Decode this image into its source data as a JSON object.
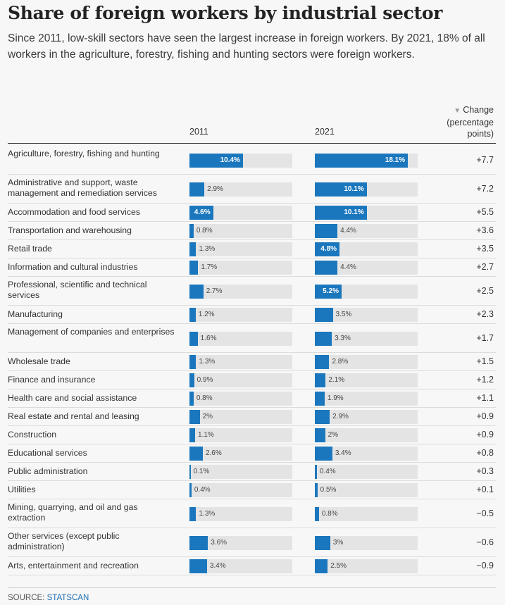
{
  "title": "Share of foreign workers by industrial sector",
  "subtitle": "Since 2011, low-skill sectors have seen the largest increase in foreign workers. By 2021, 18% of all workers in the agriculture, forestry, fishing and hunting sectors were foreign workers.",
  "columns": {
    "year_a": "2011",
    "year_b": "2021",
    "change_line1": "Change",
    "change_line2": "(percentage",
    "change_line3": "points)"
  },
  "source": {
    "label": "SOURCE:",
    "name": "STATSCAN"
  },
  "colors": {
    "bar": "#1b77bd",
    "track": "#e4e4e4"
  },
  "chart_data": {
    "type": "bar",
    "title": "Share of foreign workers by industrial sector",
    "categories": [
      "Agriculture, forestry, fishing and hunting",
      "Administrative and support, waste management and remediation services",
      "Accommodation and food services",
      "Transportation and warehousing",
      "Retail trade",
      "Information and cultural industries",
      "Professional, scientific and technical services",
      "Manufacturing",
      "Management of companies and enterprises",
      "Wholesale trade",
      "Finance and insurance",
      "Health care and social assistance",
      "Real estate and rental and leasing",
      "Construction",
      "Educational services",
      "Public administration",
      "Utilities",
      "Mining, quarrying, and oil and gas extraction",
      "Other services (except public administration)",
      "Arts, entertainment and recreation"
    ],
    "series": [
      {
        "name": "2011",
        "values": [
          10.4,
          2.9,
          4.6,
          0.8,
          1.3,
          1.7,
          2.7,
          1.2,
          1.6,
          1.3,
          0.9,
          0.8,
          2,
          1.1,
          2.6,
          0.1,
          0.4,
          1.3,
          3.6,
          3.4
        ],
        "labels": [
          "10.4%",
          "2.9%",
          "4.6%",
          "0.8%",
          "1.3%",
          "1.7%",
          "2.7%",
          "1.2%",
          "1.6%",
          "1.3%",
          "0.9%",
          "0.8%",
          "2%",
          "1.1%",
          "2.6%",
          "0.1%",
          "0.4%",
          "1.3%",
          "3.6%",
          "3.4%"
        ]
      },
      {
        "name": "2021",
        "values": [
          18.1,
          10.1,
          10.1,
          4.4,
          4.8,
          4.4,
          5.2,
          3.5,
          3.3,
          2.8,
          2.1,
          1.9,
          2.9,
          2,
          3.4,
          0.4,
          0.5,
          0.8,
          3,
          2.5
        ],
        "labels": [
          "18.1%",
          "10.1%",
          "10.1%",
          "4.4%",
          "4.8%",
          "4.4%",
          "5.2%",
          "3.5%",
          "3.3%",
          "2.8%",
          "2.1%",
          "1.9%",
          "2.9%",
          "2%",
          "3.4%",
          "0.4%",
          "0.5%",
          "0.8%",
          "3%",
          "2.5%"
        ]
      }
    ],
    "change": [
      "+7.7",
      "+7.2",
      "+5.5",
      "+3.6",
      "+3.5",
      "+2.7",
      "+2.5",
      "+2.3",
      "+1.7",
      "+1.5",
      "+1.2",
      "+1.1",
      "+0.9",
      "+0.9",
      "+0.8",
      "+0.3",
      "+0.1",
      "−0.5",
      "−0.6",
      "−0.9"
    ],
    "xlim": [
      0,
      20
    ]
  }
}
